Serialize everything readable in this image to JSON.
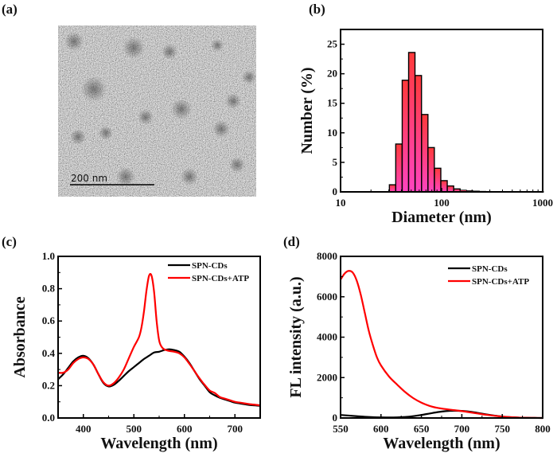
{
  "panels": {
    "a": {
      "label": "(a)",
      "type": "image",
      "description": "TEM micrograph of nanoparticles",
      "scale_bar_label": "200 nm"
    },
    "b": {
      "label": "(b)"
    },
    "c": {
      "label": "(c)"
    },
    "d": {
      "label": "(d)"
    }
  },
  "chart_data": [
    {
      "panel": "b",
      "type": "bar",
      "title": "",
      "xlabel": "Diameter (nm)",
      "ylabel": "Number (%)",
      "xscale": "log",
      "xlim": [
        10,
        1000
      ],
      "ylim": [
        0,
        27.5
      ],
      "xticks": [
        10,
        100,
        1000
      ],
      "xtick_labels": [
        "10",
        "100",
        "1000"
      ],
      "yticks": [
        0,
        5,
        10,
        15,
        20,
        25
      ],
      "ytick_labels": [
        "0",
        "5",
        "10",
        "15",
        "20",
        "25"
      ],
      "grid": false,
      "categories": [
        32.7,
        37.8,
        43.8,
        50.7,
        58.8,
        68.1,
        78.8,
        91.3,
        105.7,
        122.4,
        141.8,
        164.2,
        190.1,
        220.2,
        255.0,
        295.3,
        342.0,
        396.1,
        458.7,
        531.2,
        615.1,
        712.4,
        825.0,
        955.4
      ],
      "values": [
        1.2,
        8.1,
        18.9,
        23.6,
        19.7,
        13.1,
        7.5,
        4.0,
        1.9,
        1.0,
        0.5,
        0.3,
        0.2,
        0.15,
        0.1,
        0.08,
        0.06,
        0.05,
        0.04,
        0.03,
        0.02,
        0.02,
        0.01,
        0.01
      ],
      "bar_fill_top": "#ff3a3a",
      "bar_fill_bottom": "#ff44c0",
      "bar_edge": "#000000"
    },
    {
      "panel": "c",
      "type": "line",
      "title": "",
      "xlabel": "Wavelength (nm)",
      "ylabel": "Absorbance",
      "xlim": [
        350,
        750
      ],
      "ylim": [
        0.0,
        1.0
      ],
      "xticks": [
        400,
        500,
        600,
        700
      ],
      "xtick_labels": [
        "400",
        "500",
        "600",
        "700"
      ],
      "yticks": [
        0.0,
        0.2,
        0.4,
        0.6,
        0.8,
        1.0
      ],
      "ytick_labels": [
        "0.0",
        "0.2",
        "0.4",
        "0.6",
        "0.8",
        "1.0"
      ],
      "grid": false,
      "legend_position": "top-right",
      "series": [
        {
          "name": "SPN-CDs",
          "color": "#000000",
          "x": [
            350,
            360,
            370,
            380,
            390,
            400,
            410,
            420,
            430,
            440,
            450,
            460,
            470,
            480,
            490,
            500,
            510,
            520,
            530,
            540,
            550,
            560,
            570,
            580,
            590,
            600,
            610,
            620,
            630,
            640,
            650,
            660,
            670,
            680,
            690,
            700,
            710,
            720,
            730,
            740,
            750
          ],
          "y": [
            0.24,
            0.27,
            0.31,
            0.35,
            0.375,
            0.385,
            0.37,
            0.33,
            0.27,
            0.215,
            0.195,
            0.205,
            0.23,
            0.26,
            0.29,
            0.315,
            0.34,
            0.365,
            0.385,
            0.405,
            0.41,
            0.42,
            0.425,
            0.42,
            0.41,
            0.38,
            0.34,
            0.29,
            0.24,
            0.2,
            0.16,
            0.14,
            0.125,
            0.115,
            0.105,
            0.095,
            0.09,
            0.085,
            0.08,
            0.078,
            0.075
          ]
        },
        {
          "name": "SPN-CDs+ATP",
          "color": "#ff0000",
          "x": [
            350,
            360,
            370,
            380,
            390,
            400,
            410,
            420,
            430,
            440,
            450,
            460,
            470,
            480,
            490,
            500,
            510,
            515,
            520,
            525,
            530,
            535,
            540,
            545,
            550,
            555,
            560,
            570,
            580,
            590,
            600,
            610,
            620,
            630,
            640,
            650,
            660,
            670,
            680,
            690,
            700,
            710,
            720,
            730,
            740,
            750
          ],
          "y": [
            0.28,
            0.28,
            0.3,
            0.34,
            0.365,
            0.375,
            0.365,
            0.33,
            0.27,
            0.22,
            0.2,
            0.215,
            0.25,
            0.3,
            0.37,
            0.44,
            0.5,
            0.56,
            0.66,
            0.79,
            0.88,
            0.88,
            0.78,
            0.6,
            0.48,
            0.44,
            0.425,
            0.415,
            0.41,
            0.4,
            0.375,
            0.335,
            0.29,
            0.245,
            0.205,
            0.17,
            0.155,
            0.13,
            0.12,
            0.11,
            0.1,
            0.095,
            0.09,
            0.085,
            0.082,
            0.078
          ]
        }
      ]
    },
    {
      "panel": "d",
      "type": "line",
      "title": "",
      "xlabel": "Wavelength (nm)",
      "ylabel": "FL intensity (a.u.)",
      "xlim": [
        550,
        800
      ],
      "ylim": [
        0,
        8000
      ],
      "xticks": [
        550,
        600,
        650,
        700,
        750,
        800
      ],
      "xtick_labels": [
        "550",
        "600",
        "650",
        "700",
        "750",
        "800"
      ],
      "yticks": [
        0,
        2000,
        4000,
        6000,
        8000
      ],
      "ytick_labels": [
        "0",
        "2000",
        "4000",
        "6000",
        "8000"
      ],
      "grid": false,
      "legend_position": "top-right",
      "series": [
        {
          "name": "SPN-CDs",
          "color": "#000000",
          "x": [
            550,
            560,
            570,
            580,
            590,
            600,
            610,
            620,
            630,
            640,
            650,
            660,
            670,
            680,
            690,
            700,
            710,
            720,
            730,
            740,
            750,
            760,
            770,
            780,
            790,
            800
          ],
          "y": [
            150,
            120,
            90,
            60,
            40,
            30,
            25,
            30,
            50,
            90,
            150,
            220,
            290,
            340,
            360,
            350,
            310,
            250,
            180,
            120,
            70,
            40,
            20,
            10,
            5,
            0
          ]
        },
        {
          "name": "SPN-CDs+ATP",
          "color": "#ff0000",
          "x": [
            550,
            555,
            560,
            565,
            570,
            575,
            580,
            585,
            590,
            595,
            600,
            610,
            620,
            630,
            640,
            650,
            660,
            670,
            680,
            690,
            700,
            710,
            720,
            730,
            740,
            750,
            760,
            770,
            780,
            790,
            800
          ],
          "y": [
            6850,
            7150,
            7280,
            7200,
            6800,
            6100,
            5200,
            4300,
            3600,
            3000,
            2600,
            2050,
            1650,
            1280,
            980,
            760,
            600,
            500,
            440,
            390,
            340,
            280,
            220,
            160,
            110,
            70,
            40,
            20,
            10,
            5,
            0
          ]
        }
      ]
    }
  ]
}
